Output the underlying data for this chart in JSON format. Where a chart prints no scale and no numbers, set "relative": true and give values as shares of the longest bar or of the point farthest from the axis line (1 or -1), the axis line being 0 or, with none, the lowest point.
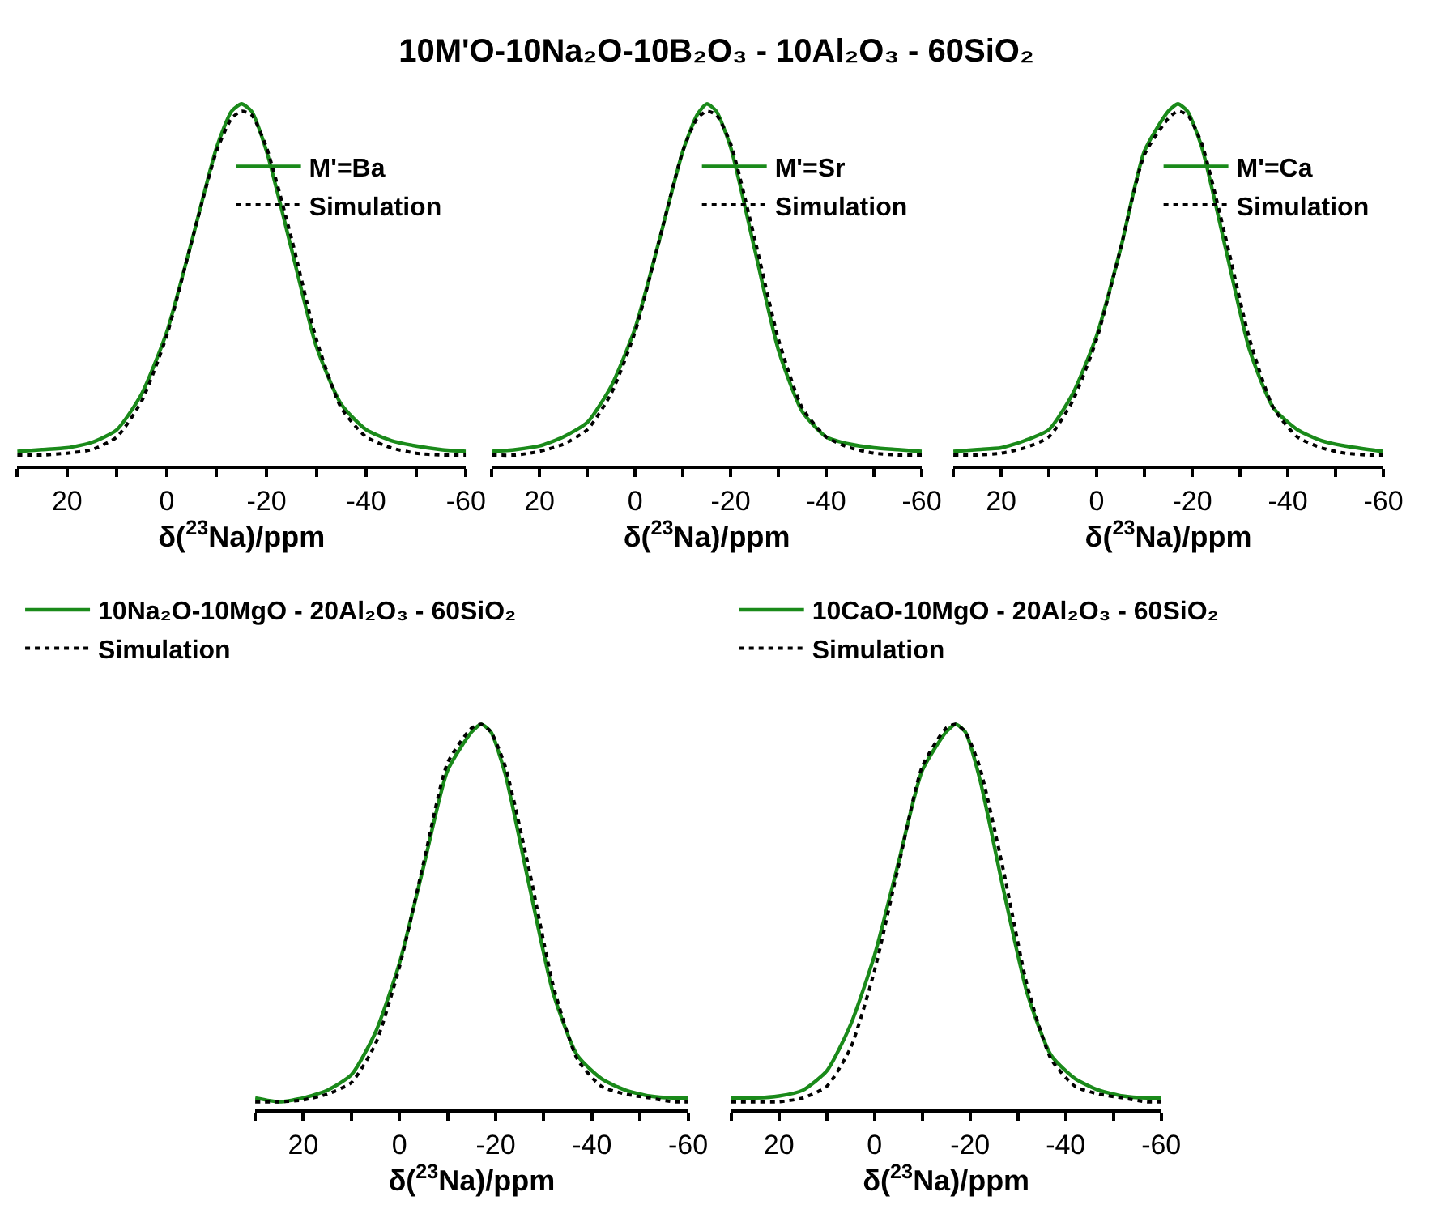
{
  "chart_data": [
    {
      "type": "line",
      "relative": true,
      "xlabel": "δ($^{23}$Na)/ppm",
      "xlim": [
        30,
        -60
      ],
      "xticks": [
        {
          "value": 30,
          "label": null
        },
        20,
        {
          "value": 10,
          "label": null
        },
        0,
        {
          "value": -10,
          "label": null
        },
        -20,
        {
          "value": -30,
          "label": null
        },
        -40,
        {
          "value": -50,
          "label": null
        },
        -60
      ],
      "tick_labels": "x",
      "legend": "top right",
      "grid": false,
      "x": [
        30,
        25,
        20,
        15,
        10,
        5,
        0,
        -5,
        -10,
        -13,
        -15,
        -17,
        -20,
        -25,
        -30,
        -35,
        -40,
        -45,
        -50,
        -55,
        -60
      ],
      "series": [
        {
          "name": "M'=Ba",
          "color": "#1a8a1a",
          "line_style": "solid",
          "values": [
            0.04,
            0.045,
            0.05,
            0.065,
            0.1,
            0.2,
            0.37,
            0.62,
            0.88,
            0.98,
            1.0,
            0.98,
            0.87,
            0.6,
            0.33,
            0.17,
            0.1,
            0.07,
            0.055,
            0.045,
            0.04
          ]
        },
        {
          "name": "Simulation",
          "color": "#000000",
          "line_style": "dotted",
          "values": [
            0.03,
            0.03,
            0.035,
            0.045,
            0.08,
            0.18,
            0.36,
            0.62,
            0.87,
            0.96,
            0.98,
            0.97,
            0.88,
            0.63,
            0.35,
            0.16,
            0.08,
            0.05,
            0.035,
            0.03,
            0.03
          ]
        }
      ]
    },
    {
      "type": "line",
      "relative": true,
      "title": "10M'O-10Na₂O-10B₂O₃ - 10Al₂O₃ - 60SiO₂",
      "xlabel": "δ($^{23}$Na)/ppm",
      "xlim": [
        30,
        -60
      ],
      "xticks": [
        {
          "value": 30,
          "label": null
        },
        20,
        {
          "value": 10,
          "label": null
        },
        0,
        {
          "value": -10,
          "label": null
        },
        -20,
        {
          "value": -30,
          "label": null
        },
        -40,
        {
          "value": -50,
          "label": null
        },
        -60
      ],
      "tick_labels": "x",
      "legend": "top right",
      "grid": false,
      "x": [
        30,
        25,
        20,
        15,
        10,
        5,
        0,
        -5,
        -10,
        -13,
        -15,
        -17,
        -20,
        -25,
        -30,
        -35,
        -40,
        -45,
        -50,
        -55,
        -60
      ],
      "series": [
        {
          "name": "M'=Sr",
          "color": "#1a8a1a",
          "line_style": "solid",
          "values": [
            0.04,
            0.045,
            0.055,
            0.08,
            0.12,
            0.22,
            0.38,
            0.62,
            0.87,
            0.97,
            1.0,
            0.98,
            0.88,
            0.6,
            0.32,
            0.15,
            0.08,
            0.06,
            0.05,
            0.045,
            0.04
          ]
        },
        {
          "name": "Simulation",
          "color": "#000000",
          "line_style": "dotted",
          "values": [
            0.03,
            0.03,
            0.04,
            0.06,
            0.1,
            0.2,
            0.37,
            0.62,
            0.87,
            0.96,
            0.98,
            0.97,
            0.89,
            0.63,
            0.35,
            0.16,
            0.08,
            0.05,
            0.035,
            0.03,
            0.03
          ]
        }
      ]
    },
    {
      "type": "line",
      "relative": true,
      "xlabel": "δ($^{23}$Na)/ppm",
      "xlim": [
        30,
        -60
      ],
      "xticks": [
        {
          "value": 30,
          "label": null
        },
        20,
        {
          "value": 10,
          "label": null
        },
        0,
        {
          "value": -10,
          "label": null
        },
        -20,
        {
          "value": -30,
          "label": null
        },
        -40,
        {
          "value": -50,
          "label": null
        },
        -60
      ],
      "tick_labels": "x",
      "legend": "top right",
      "grid": false,
      "x": [
        30,
        25,
        20,
        15,
        10,
        5,
        0,
        -5,
        -10,
        -15,
        -17,
        -19,
        -22,
        -27,
        -32,
        -37,
        -42,
        -47,
        -52,
        -57,
        -60
      ],
      "series": [
        {
          "name": "M'=Ca",
          "color": "#1a8a1a",
          "line_style": "solid",
          "values": [
            0.04,
            0.045,
            0.05,
            0.07,
            0.1,
            0.2,
            0.36,
            0.6,
            0.87,
            0.98,
            1.0,
            0.98,
            0.88,
            0.6,
            0.32,
            0.16,
            0.1,
            0.07,
            0.055,
            0.045,
            0.04
          ]
        },
        {
          "name": "Simulation",
          "color": "#000000",
          "line_style": "dotted",
          "values": [
            0.03,
            0.03,
            0.035,
            0.05,
            0.08,
            0.18,
            0.35,
            0.6,
            0.86,
            0.96,
            0.98,
            0.97,
            0.89,
            0.63,
            0.35,
            0.16,
            0.08,
            0.05,
            0.035,
            0.03,
            0.03
          ]
        }
      ]
    },
    {
      "type": "line",
      "relative": true,
      "xlabel": "δ($^{23}$Na)/ppm",
      "xlim": [
        30,
        -60
      ],
      "xticks": [
        {
          "value": 30,
          "label": null
        },
        20,
        {
          "value": 10,
          "label": null
        },
        0,
        {
          "value": -10,
          "label": null
        },
        -20,
        {
          "value": -30,
          "label": null
        },
        -40,
        {
          "value": -50,
          "label": null
        },
        -60
      ],
      "tick_labels": "x",
      "legend": "top",
      "grid": false,
      "x": [
        30,
        25,
        20,
        15,
        10,
        5,
        0,
        -5,
        -10,
        -15,
        -17,
        -19,
        -22,
        -27,
        -32,
        -37,
        -42,
        -47,
        -52,
        -57,
        -60
      ],
      "series": [
        {
          "name": "10Na₂O-10MgO - 20Al₂O₃ - 60SiO₂",
          "color": "#1a8a1a",
          "line_style": "solid",
          "values": [
            0.03,
            0.02,
            0.03,
            0.05,
            0.09,
            0.2,
            0.38,
            0.63,
            0.88,
            0.98,
            1.0,
            0.98,
            0.87,
            0.58,
            0.3,
            0.14,
            0.08,
            0.05,
            0.035,
            0.03,
            0.03
          ]
        },
        {
          "name": "Simulation",
          "color": "#000000",
          "line_style": "dotted",
          "values": [
            0.02,
            0.02,
            0.025,
            0.04,
            0.07,
            0.17,
            0.37,
            0.64,
            0.9,
            0.99,
            1.0,
            0.98,
            0.89,
            0.62,
            0.32,
            0.13,
            0.06,
            0.04,
            0.03,
            0.02,
            0.02
          ]
        }
      ]
    },
    {
      "type": "line",
      "relative": true,
      "xlabel": "δ($^{23}$Na)/ppm",
      "xlim": [
        30,
        -60
      ],
      "xticks": [
        {
          "value": 30,
          "label": null
        },
        20,
        {
          "value": 10,
          "label": null
        },
        0,
        {
          "value": -10,
          "label": null
        },
        -20,
        {
          "value": -30,
          "label": null
        },
        -40,
        {
          "value": -50,
          "label": null
        },
        -60
      ],
      "tick_labels": "x",
      "legend": "top",
      "grid": false,
      "x": [
        30,
        25,
        20,
        15,
        10,
        5,
        0,
        -5,
        -10,
        -15,
        -17,
        -19,
        -22,
        -27,
        -32,
        -37,
        -42,
        -47,
        -52,
        -57,
        -60
      ],
      "series": [
        {
          "name": "10CaO-10MgO - 20Al₂O₃ - 60SiO₂",
          "color": "#1a8a1a",
          "line_style": "solid",
          "values": [
            0.03,
            0.03,
            0.035,
            0.05,
            0.1,
            0.22,
            0.4,
            0.64,
            0.88,
            0.98,
            1.0,
            0.98,
            0.86,
            0.57,
            0.3,
            0.14,
            0.08,
            0.05,
            0.035,
            0.03,
            0.03
          ]
        },
        {
          "name": "Simulation",
          "color": "#000000",
          "line_style": "dotted",
          "values": [
            0.02,
            0.02,
            0.02,
            0.03,
            0.06,
            0.16,
            0.36,
            0.63,
            0.89,
            0.99,
            1.0,
            0.98,
            0.89,
            0.62,
            0.32,
            0.13,
            0.06,
            0.04,
            0.03,
            0.02,
            0.02
          ]
        }
      ]
    }
  ]
}
